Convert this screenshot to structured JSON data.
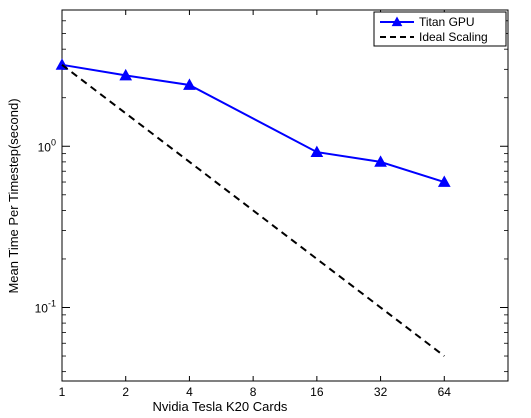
{
  "chart_data": {
    "type": "line",
    "xlabel": "Nvidia Tesla K20 Cards",
    "ylabel": "Mean Time Per Timestep(second)",
    "x_scale": "log2",
    "y_scale": "log10",
    "xlim": [
      1,
      128
    ],
    "ylim": [
      0.035,
      7
    ],
    "x_ticks": [
      1,
      2,
      4,
      8,
      16,
      32,
      64
    ],
    "x_tick_labels": [
      "1",
      "2",
      "4",
      "8",
      "16",
      "32",
      "64"
    ],
    "y_ticks": [
      0.1,
      1
    ],
    "y_tick_labels": [
      {
        "base": "10",
        "exp": "-1"
      },
      {
        "base": "10",
        "exp": "0"
      }
    ],
    "legend_position": "top-right",
    "grid": false,
    "series": [
      {
        "name": "Titan GPU",
        "color": "#0000ff",
        "line_style": "solid",
        "marker": "triangle",
        "x": [
          1,
          2,
          4,
          16,
          32,
          64
        ],
        "y": [
          3.2,
          2.75,
          2.4,
          0.92,
          0.8,
          0.6
        ]
      },
      {
        "name": "Ideal Scaling",
        "color": "#000000",
        "line_style": "dashed",
        "marker": "none",
        "x": [
          1,
          64
        ],
        "y": [
          3.2,
          0.05
        ]
      }
    ]
  }
}
